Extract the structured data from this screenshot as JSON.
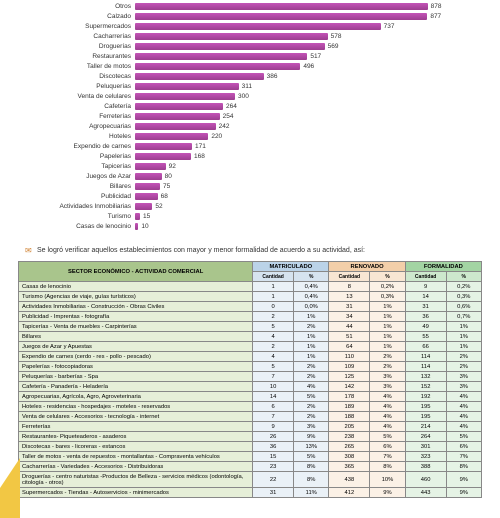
{
  "chart": {
    "bar_color": "#a849a0",
    "max_value": 900,
    "items": [
      {
        "label": "Otros",
        "value": 878
      },
      {
        "label": "Calzado",
        "value": 877
      },
      {
        "label": "Supermercados",
        "value": 737
      },
      {
        "label": "Cacharrerías",
        "value": 578
      },
      {
        "label": "Droguerías",
        "value": 569
      },
      {
        "label": "Restaurantes",
        "value": 517
      },
      {
        "label": "Taller de motos",
        "value": 496
      },
      {
        "label": "Discotecas",
        "value": 386
      },
      {
        "label": "Peluquerías",
        "value": 311
      },
      {
        "label": "Venta de celulares",
        "value": 300
      },
      {
        "label": "Cafetería",
        "value": 264
      },
      {
        "label": "Ferreterías",
        "value": 254
      },
      {
        "label": "Agropecuarias",
        "value": 242
      },
      {
        "label": "Hoteles",
        "value": 220
      },
      {
        "label": "Expendio de carnes",
        "value": 171
      },
      {
        "label": "Papelerías",
        "value": 168
      },
      {
        "label": "Tapicerías",
        "value": 92
      },
      {
        "label": "Juegos de Azar",
        "value": 80
      },
      {
        "label": "Billares",
        "value": 75
      },
      {
        "label": "Publicidad",
        "value": 68
      },
      {
        "label": "Actividades Inmobiliarias",
        "value": 52
      },
      {
        "label": "Turismo",
        "value": 15
      },
      {
        "label": "Casas de lenocinio",
        "value": 10
      }
    ]
  },
  "note": {
    "icon": "✉",
    "text": "Se logró verificar aquellos establecimientos con mayor y menor formalidad de acuerdo a su actividad, así:"
  },
  "table": {
    "headers": {
      "sector": "SECTOR ECONÓMICO - ACTIVIDAD COMERCIAL",
      "mat": "MATRICULADO",
      "ren": "RENOVADO",
      "for": "FORMALIDAD",
      "sub_cant": "Cantidad",
      "sub_pct": "%"
    },
    "rows": [
      {
        "sector": "Casas de lenocinio",
        "mc": "1",
        "mp": "0,4%",
        "rc": "8",
        "rp": "0,2%",
        "fc": "9",
        "fp": "0,2%"
      },
      {
        "sector": "Turismo (Agencias de viaje, guías turísticos)",
        "mc": "1",
        "mp": "0,4%",
        "rc": "13",
        "rp": "0,3%",
        "fc": "14",
        "fp": "0,3%"
      },
      {
        "sector": "Actividades Inmobiliarias - Construcción - Obras Civiles",
        "mc": "0",
        "mp": "0,0%",
        "rc": "31",
        "rp": "1%",
        "fc": "31",
        "fp": "0,6%"
      },
      {
        "sector": "Publicidad - Imprentas - fotografía",
        "mc": "2",
        "mp": "1%",
        "rc": "34",
        "rp": "1%",
        "fc": "36",
        "fp": "0,7%"
      },
      {
        "sector": "Tapicerías - Venta de muebles - Carpinterías",
        "mc": "5",
        "mp": "2%",
        "rc": "44",
        "rp": "1%",
        "fc": "49",
        "fp": "1%"
      },
      {
        "sector": "Billares",
        "mc": "4",
        "mp": "1%",
        "rc": "51",
        "rp": "1%",
        "fc": "55",
        "fp": "1%"
      },
      {
        "sector": "Juegos de Azar y Apuestas",
        "mc": "2",
        "mp": "1%",
        "rc": "64",
        "rp": "1%",
        "fc": "66",
        "fp": "1%"
      },
      {
        "sector": "Expendio de carnes (cerdo - res - pollo - pescado)",
        "mc": "4",
        "mp": "1%",
        "rc": "110",
        "rp": "2%",
        "fc": "114",
        "fp": "2%"
      },
      {
        "sector": "Papelerías - fotocopiadoras",
        "mc": "5",
        "mp": "2%",
        "rc": "109",
        "rp": "2%",
        "fc": "114",
        "fp": "2%"
      },
      {
        "sector": "Peluquerías - barberías - Spa",
        "mc": "7",
        "mp": "2%",
        "rc": "125",
        "rp": "3%",
        "fc": "132",
        "fp": "3%"
      },
      {
        "sector": "Cafetería - Panadería - Heladería",
        "mc": "10",
        "mp": "4%",
        "rc": "142",
        "rp": "3%",
        "fc": "152",
        "fp": "3%"
      },
      {
        "sector": "Agropecuarias, Agrícola, Agro, Agroveterinaria",
        "mc": "14",
        "mp": "5%",
        "rc": "178",
        "rp": "4%",
        "fc": "192",
        "fp": "4%"
      },
      {
        "sector": "Hoteles - residencias - hospedajes - moteles - reservados",
        "mc": "6",
        "mp": "2%",
        "rc": "189",
        "rp": "4%",
        "fc": "195",
        "fp": "4%"
      },
      {
        "sector": "Venta de celulares - Accesorios - tecnología - internet",
        "mc": "7",
        "mp": "2%",
        "rc": "188",
        "rp": "4%",
        "fc": "195",
        "fp": "4%"
      },
      {
        "sector": "Ferreterías",
        "mc": "9",
        "mp": "3%",
        "rc": "205",
        "rp": "4%",
        "fc": "214",
        "fp": "4%"
      },
      {
        "sector": "Restaurantes- Piqueteaderos - asaderos",
        "mc": "26",
        "mp": "9%",
        "rc": "238",
        "rp": "5%",
        "fc": "264",
        "fp": "5%"
      },
      {
        "sector": "Discotecas - bares - licoreras - estancos",
        "mc": "36",
        "mp": "13%",
        "rc": "265",
        "rp": "6%",
        "fc": "301",
        "fp": "6%"
      },
      {
        "sector": "Taller de motos - venta de repuestos - montallantas - Compraventa vehículos",
        "mc": "15",
        "mp": "5%",
        "rc": "308",
        "rp": "7%",
        "fc": "323",
        "fp": "7%"
      },
      {
        "sector": "Cacharrerías - Variedades - Accesorios - Distribuidoras",
        "mc": "23",
        "mp": "8%",
        "rc": "365",
        "rp": "8%",
        "fc": "388",
        "fp": "8%"
      },
      {
        "sector": "Droguerías - centro naturistas -Productos de Belleza - servicios médicos (odontología, citología - otros)",
        "mc": "22",
        "mp": "8%",
        "rc": "438",
        "rp": "10%",
        "fc": "460",
        "fp": "9%"
      },
      {
        "sector": "Supermercados - Tiendas - Autoservicios - minimercados",
        "mc": "31",
        "mp": "11%",
        "rc": "412",
        "rp": "9%",
        "fc": "443",
        "fp": "9%"
      }
    ]
  }
}
